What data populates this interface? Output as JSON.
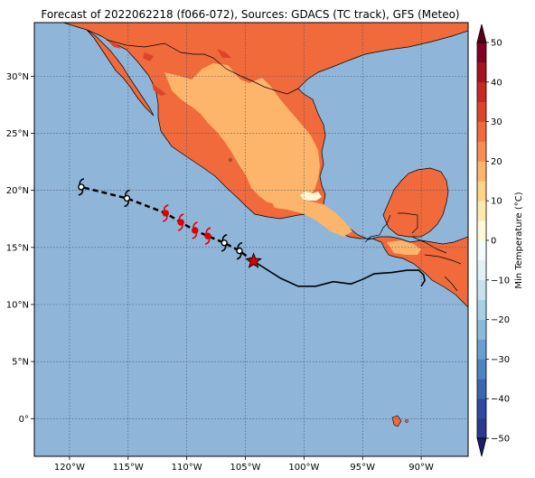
{
  "title": "Forecast of 2022062218 (f066-072), Sources: GDACS (TC track), GFS (Meteo)",
  "colorbar": {
    "label": "Min Temperature (°C)",
    "ticks": [
      "50",
      "40",
      "30",
      "20",
      "10",
      "0",
      "−10",
      "−20",
      "−30",
      "−40",
      "−50"
    ],
    "levels": [
      -50,
      -45,
      -40,
      -35,
      -30,
      -25,
      -20,
      -15,
      -10,
      -5,
      0,
      5,
      10,
      15,
      20,
      25,
      30,
      35,
      40,
      45,
      50
    ],
    "colors": [
      "#2b3a8c",
      "#2f4aa0",
      "#3c67b0",
      "#4c84c0",
      "#6aa0d0",
      "#8cbadb",
      "#a8d0e5",
      "#c6e2ee",
      "#e2f1f6",
      "#f4fbfc",
      "#fff9d8",
      "#ffe9ad",
      "#fed38a",
      "#fdb56b",
      "#f88d52",
      "#f06a3b",
      "#dd452b",
      "#c82a23",
      "#a6131f",
      "#800026"
    ],
    "extend_low_color": "#1a1f6e",
    "extend_high_color": "#5c0018"
  },
  "map": {
    "lon_range": [
      -123,
      -86
    ],
    "lat_range": [
      -3.3,
      34.7
    ],
    "ocean_color": "#8fb5d9",
    "grid": true,
    "x_ticks": [
      "120°W",
      "115°W",
      "110°W",
      "105°W",
      "100°W",
      "95°W",
      "90°W"
    ],
    "y_ticks": [
      "30°N",
      "25°N",
      "20°N",
      "15°N",
      "10°N",
      "5°N",
      "0°"
    ]
  },
  "chart_data": {
    "type": "map",
    "title": "Forecast of 2022062218 (f066-072), Sources: GDACS (TC track), GFS (Meteo)",
    "x_axis": {
      "range": [
        -123,
        -86
      ],
      "ticks": [
        -120,
        -115,
        -110,
        -105,
        -100,
        -95,
        -90
      ]
    },
    "y_axis": {
      "range": [
        -3.3,
        34.7
      ],
      "ticks": [
        30,
        25,
        20,
        15,
        10,
        5,
        0
      ]
    },
    "field": "Min Temperature (°C)",
    "tc_track_past": [
      {
        "lon": -104.3,
        "lat": 13.8
      },
      {
        "lon": -102.0,
        "lat": 12.3
      },
      {
        "lon": -100.5,
        "lat": 11.6
      },
      {
        "lon": -99.0,
        "lat": 11.6
      },
      {
        "lon": -97.5,
        "lat": 12.0
      },
      {
        "lon": -96.0,
        "lat": 11.8
      },
      {
        "lon": -95.0,
        "lat": 12.2
      },
      {
        "lon": -94.0,
        "lat": 12.7
      },
      {
        "lon": -92.5,
        "lat": 12.8
      },
      {
        "lon": -91.2,
        "lat": 13.0
      },
      {
        "lon": -90.2,
        "lat": 13.0
      },
      {
        "lon": -89.8,
        "lat": 12.6
      },
      {
        "lon": -89.7,
        "lat": 12.1
      },
      {
        "lon": -90.0,
        "lat": 11.6
      }
    ],
    "tc_current": {
      "lon": -104.3,
      "lat": 13.8
    },
    "tc_forecast": [
      {
        "lon": -105.5,
        "lat": 14.7,
        "class": "storm"
      },
      {
        "lon": -106.8,
        "lat": 15.4,
        "class": "storm"
      },
      {
        "lon": -108.2,
        "lat": 16.0,
        "class": "hurricane"
      },
      {
        "lon": -109.3,
        "lat": 16.5,
        "class": "hurricane"
      },
      {
        "lon": -110.5,
        "lat": 17.2,
        "class": "hurricane"
      },
      {
        "lon": -111.8,
        "lat": 18.0,
        "class": "hurricane"
      },
      {
        "lon": -115.1,
        "lat": 19.3,
        "class": "storm"
      },
      {
        "lon": -119.0,
        "lat": 20.3,
        "class": "storm"
      }
    ]
  }
}
